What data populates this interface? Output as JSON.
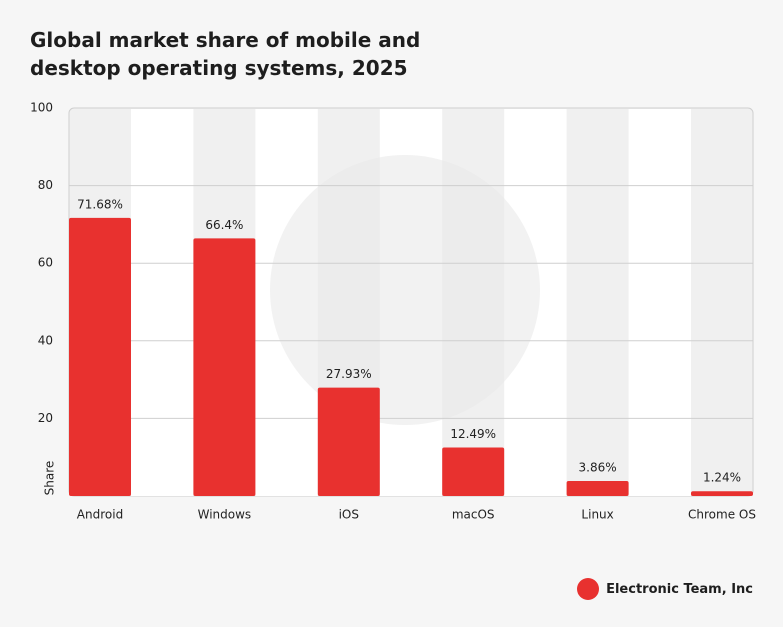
{
  "chart_data": {
    "type": "bar",
    "title": "Global market share of mobile and desktop operating systems, 2025",
    "y_label": "Share",
    "categories": [
      "Android",
      "Windows",
      "iOS",
      "macOS",
      "Linux",
      "Chrome OS"
    ],
    "values": [
      71.68,
      66.4,
      27.93,
      12.49,
      3.86,
      1.24
    ],
    "value_labels": [
      "71.68%",
      "66.4%",
      "27.93%",
      "12.49%",
      "3.86%",
      "1.24%"
    ],
    "color": "#e8312f",
    "ylim": [
      0,
      100
    ],
    "yticks": [
      20,
      40,
      60,
      80,
      100
    ],
    "grid": true
  },
  "footer": {
    "brand": "Electronic Team, Inc"
  }
}
